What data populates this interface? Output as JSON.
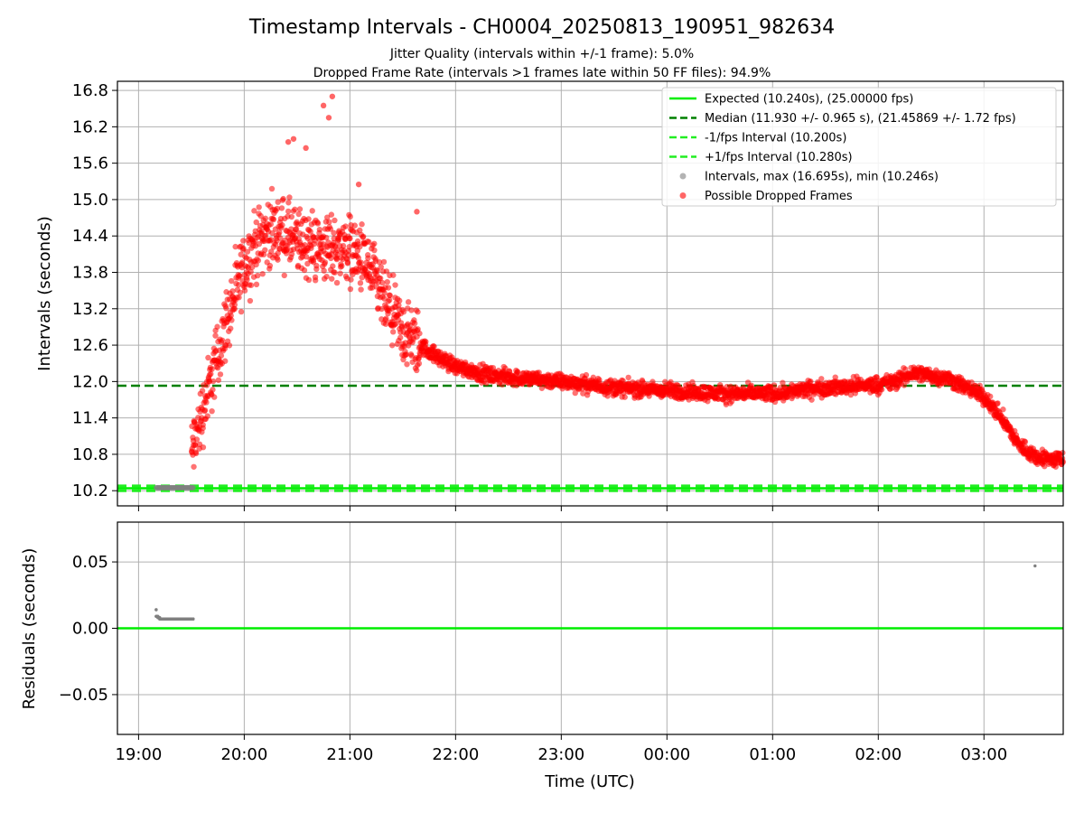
{
  "title": "Timestamp Intervals - CH0004_20250813_190951_982634",
  "subtitle_1": "Jitter Quality (intervals within +/-1 frame): 5.0%",
  "subtitle_2": "Dropped Frame Rate (intervals >1 frames late within 50 FF files): 94.9%",
  "colors": {
    "expected": "#00ee00",
    "median": "#008000",
    "interval_band": "#22ee22",
    "dropped": "#ff0000",
    "intervals": "#808080",
    "grid": "#b0b0b0"
  },
  "chart_data": [
    {
      "type": "scatter",
      "name": "intervals",
      "ylabel": "Intervals (seconds)",
      "xlabel": "",
      "x_unit": "time of day (UTC)",
      "xlim": [
        "18:48",
        "03:45"
      ],
      "ylim": [
        9.95,
        16.95
      ],
      "yticks": [
        "10.2",
        "10.8",
        "11.4",
        "12.0",
        "12.6",
        "13.2",
        "13.8",
        "14.4",
        "15.0",
        "15.6",
        "16.2",
        "16.8"
      ],
      "grid": true,
      "legend_position": "upper right",
      "legend": [
        "Expected (10.240s), (25.00000 fps)",
        "Median (11.930 +/- 0.965 s), (21.45869 +/- 1.72 fps)",
        "-1/fps Interval (10.200s)",
        "+1/fps Interval (10.280s)",
        "Intervals, max (16.695s), min (10.246s)",
        "Possible Dropped Frames"
      ],
      "lines": {
        "expected": 10.24,
        "median": 11.93,
        "minus_one_fps": 10.2,
        "plus_one_fps": 10.28
      },
      "dropped_frame_trend": [
        [
          "19:30",
          10.8
        ],
        [
          "19:40",
          11.9
        ],
        [
          "19:50",
          13.0
        ],
        [
          "20:00",
          13.9
        ],
        [
          "20:10",
          14.4
        ],
        [
          "20:20",
          14.5
        ],
        [
          "20:30",
          14.3
        ],
        [
          "20:45",
          14.2
        ],
        [
          "21:00",
          14.2
        ],
        [
          "21:10",
          13.9
        ],
        [
          "21:20",
          13.3
        ],
        [
          "21:30",
          12.8
        ],
        [
          "21:40",
          12.6
        ],
        [
          "21:50",
          12.4
        ],
        [
          "22:00",
          12.25
        ],
        [
          "22:20",
          12.1
        ],
        [
          "22:40",
          12.05
        ],
        [
          "23:00",
          12.0
        ],
        [
          "23:30",
          11.9
        ],
        [
          "00:00",
          11.85
        ],
        [
          "00:30",
          11.8
        ],
        [
          "01:00",
          11.8
        ],
        [
          "01:30",
          11.9
        ],
        [
          "02:00",
          11.95
        ],
        [
          "02:10",
          12.0
        ],
        [
          "02:20",
          12.15
        ],
        [
          "02:40",
          12.05
        ],
        [
          "02:50",
          11.9
        ],
        [
          "03:00",
          11.75
        ],
        [
          "03:10",
          11.4
        ],
        [
          "03:20",
          10.95
        ],
        [
          "03:30",
          10.75
        ],
        [
          "03:45",
          10.7
        ]
      ],
      "dropped_frame_peak_outliers": [
        [
          "20:45",
          16.55
        ],
        [
          "20:50",
          16.7
        ],
        [
          "20:48",
          16.35
        ],
        [
          "20:28",
          16.0
        ],
        [
          "20:25",
          15.95
        ],
        [
          "20:35",
          15.85
        ],
        [
          "21:05",
          15.25
        ],
        [
          "21:38",
          14.8
        ]
      ],
      "low_intervals_x_range": [
        "19:10",
        "19:31"
      ],
      "low_intervals_y": 10.25
    },
    {
      "type": "scatter",
      "name": "residuals",
      "ylabel": "Residuals (seconds)",
      "xlabel": "Time (UTC)",
      "xticks": [
        "19:00",
        "20:00",
        "21:00",
        "22:00",
        "23:00",
        "00:00",
        "01:00",
        "02:00",
        "03:00"
      ],
      "yticks": [
        "0.05",
        "0.00",
        "−0.05"
      ],
      "ylim": [
        -0.08,
        0.08
      ],
      "grid": true,
      "zero_line": 0.0,
      "points": [
        [
          "19:10",
          0.014
        ],
        [
          "19:10",
          0.009
        ],
        [
          "19:11",
          0.008
        ],
        [
          "19:12",
          0.007
        ],
        [
          "19:15",
          0.007
        ],
        [
          "19:20",
          0.007
        ],
        [
          "19:25",
          0.007
        ],
        [
          "19:30",
          0.007
        ],
        [
          "19:31",
          0.007
        ],
        [
          "03:29",
          0.047
        ]
      ]
    }
  ]
}
